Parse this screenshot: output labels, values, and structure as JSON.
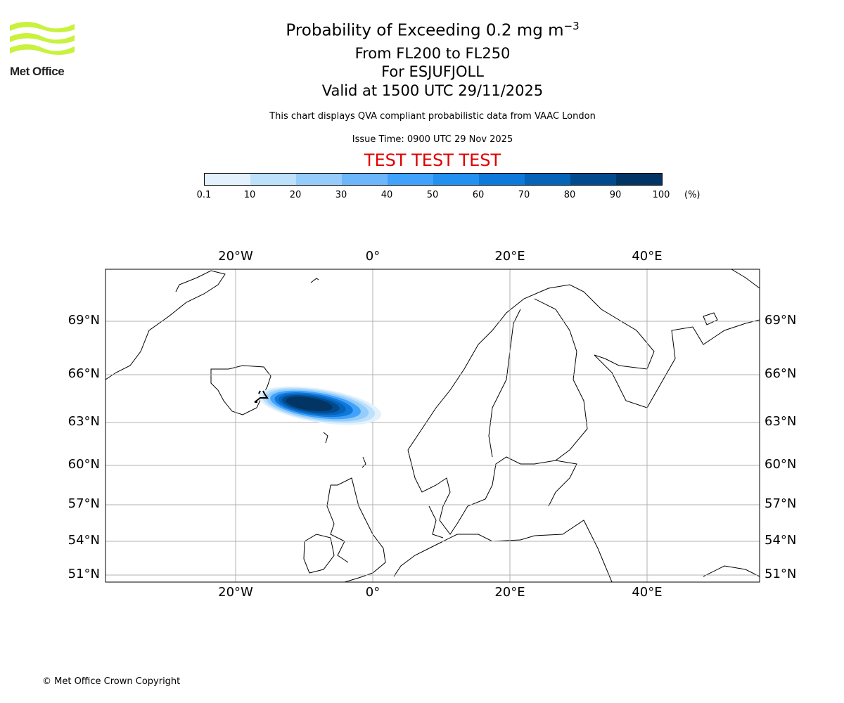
{
  "header": {
    "title": "Probability of Exceeding 0.2 mg m",
    "title_sup": "−3",
    "levels": "From FL200 to FL250",
    "volcano": "For ESJUFJOLL",
    "valid": "Valid at 1500 UTC 29/11/2025",
    "note": "This chart displays QVA compliant probabilistic data from VAAC London",
    "issue": "Issue Time: 0900 UTC 29 Nov 2025",
    "test": "TEST TEST TEST"
  },
  "logo": {
    "text": "Met Office",
    "color": "#c8f23c"
  },
  "colorbar": {
    "ticks": [
      "0.1",
      "10",
      "20",
      "30",
      "40",
      "50",
      "60",
      "70",
      "80",
      "90",
      "100"
    ],
    "unit": "(%)",
    "colors": [
      "#e3f1fd",
      "#bde0fb",
      "#95ccfb",
      "#6cb6fb",
      "#40a2fb",
      "#2290f0",
      "#0f78db",
      "#0563b8",
      "#024a8e",
      "#023563"
    ]
  },
  "map": {
    "lon_labels": [
      "20°W",
      "0°",
      "20°E",
      "40°E"
    ],
    "lat_labels": [
      "69°N",
      "66°N",
      "63°N",
      "60°N",
      "57°N",
      "54°N",
      "51°N"
    ]
  },
  "footer": {
    "copyright": "© Met Office Crown Copyright"
  }
}
